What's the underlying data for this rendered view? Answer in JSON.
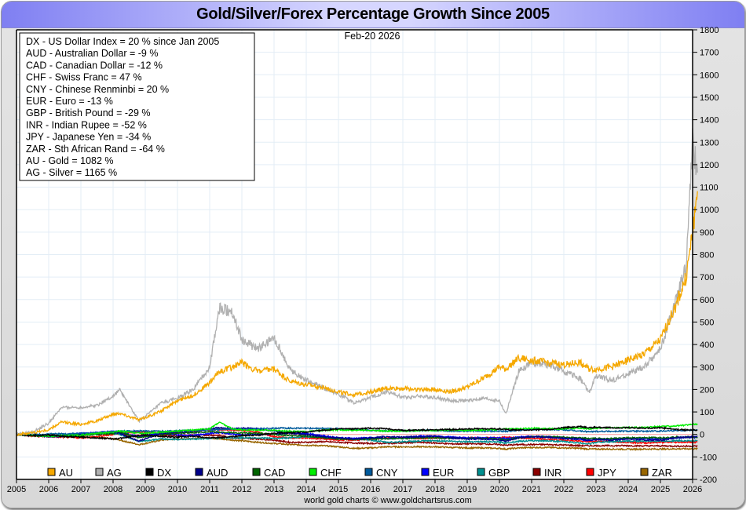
{
  "chart_data": {
    "type": "line",
    "title": "Gold/Silver/Forex Percentage Growth Since 2005",
    "date_label": "Feb-20  2026",
    "footer": "world gold charts © www.goldchartsrus.com",
    "xlabel": "",
    "ylabel": "",
    "xlim": [
      2005,
      2026.15
    ],
    "ylim": [
      -200,
      1800
    ],
    "x_ticks": [
      "2005",
      "2006",
      "2007",
      "2008",
      "2009",
      "2010",
      "2011",
      "2012",
      "2013",
      "2014",
      "2015",
      "2016",
      "2017",
      "2018",
      "2019",
      "2020",
      "2021",
      "2022",
      "2023",
      "2024",
      "2025",
      "2026"
    ],
    "y_ticks": [
      1800,
      1700,
      1600,
      1500,
      1400,
      1300,
      1200,
      1100,
      1000,
      900,
      800,
      700,
      600,
      500,
      400,
      300,
      200,
      100,
      0,
      -100,
      -200
    ],
    "grid": true,
    "legend_position": "bottom",
    "summary_box": [
      "DX - US Dollar Index = 20 % since Jan 2005",
      "AUD - Australian Dollar = -9 %",
      "CAD - Canadian Dollar = -12 %",
      "CHF - Swiss Franc = 47 %",
      "CNY - Chinese Renminbi = 20 %",
      "EUR - Euro = -13 %",
      "GBP - British Pound = -29 %",
      "INR - Indian Rupee = -52 %",
      "JPY - Japanese Yen = -34 %",
      "ZAR - Sth African Rand = -64 %",
      "AU - Gold = 1082 %",
      "AG - Silver = 1165 %"
    ],
    "x": [
      2005,
      2005.5,
      2006,
      2006.4,
      2007,
      2007.5,
      2008,
      2008.2,
      2008.8,
      2009,
      2009.5,
      2010,
      2010.5,
      2011,
      2011.3,
      2011.7,
      2012,
      2012.5,
      2013,
      2013.5,
      2014,
      2014.5,
      2015,
      2015.5,
      2016,
      2016.5,
      2017,
      2017.5,
      2018,
      2018.5,
      2019,
      2019.5,
      2020,
      2020.2,
      2020.6,
      2021,
      2021.5,
      2022,
      2022.5,
      2022.8,
      2023,
      2023.5,
      2024,
      2024.5,
      2025,
      2025.5,
      2025.8,
      2026,
      2026.15
    ],
    "series": [
      {
        "name": "AU",
        "color": "#f5a800",
        "values": [
          0,
          8,
          20,
          55,
          45,
          60,
          90,
          95,
          65,
          75,
          105,
          150,
          175,
          230,
          280,
          300,
          320,
          280,
          290,
          235,
          220,
          210,
          190,
          175,
          190,
          205,
          205,
          200,
          200,
          190,
          210,
          250,
          300,
          290,
          340,
          330,
          320,
          310,
          320,
          290,
          290,
          300,
          330,
          360,
          420,
          580,
          700,
          900,
          1082
        ]
      },
      {
        "name": "AG",
        "color": "#b0b0b0",
        "values": [
          0,
          10,
          50,
          120,
          120,
          130,
          170,
          200,
          60,
          80,
          140,
          160,
          200,
          300,
          560,
          550,
          420,
          380,
          430,
          290,
          240,
          210,
          180,
          140,
          165,
          190,
          165,
          170,
          165,
          150,
          150,
          160,
          150,
          90,
          280,
          320,
          310,
          280,
          250,
          185,
          260,
          240,
          270,
          300,
          380,
          600,
          750,
          1300,
          1165
        ]
      },
      {
        "name": "DX",
        "color": "#000000",
        "values": [
          0,
          -5,
          -2,
          -8,
          -12,
          -15,
          -20,
          -18,
          -5,
          -2,
          -10,
          -12,
          -8,
          -15,
          -14,
          -10,
          -5,
          -3,
          5,
          8,
          10,
          18,
          25,
          25,
          28,
          25,
          18,
          20,
          20,
          22,
          25,
          25,
          25,
          22,
          20,
          20,
          22,
          30,
          35,
          30,
          32,
          30,
          30,
          28,
          30,
          22,
          20,
          20,
          20
        ]
      },
      {
        "name": "AUD",
        "color": "#00008b",
        "values": [
          0,
          -5,
          -10,
          -8,
          0,
          5,
          10,
          5,
          -30,
          -20,
          5,
          10,
          15,
          25,
          30,
          25,
          28,
          25,
          15,
          5,
          0,
          -10,
          -15,
          -20,
          -15,
          -10,
          -12,
          -10,
          -8,
          -15,
          -20,
          -20,
          -25,
          -30,
          -15,
          -10,
          -12,
          -18,
          -20,
          -25,
          -22,
          -25,
          -20,
          -25,
          -25,
          -15,
          -12,
          -10,
          -9
        ]
      },
      {
        "name": "CAD",
        "color": "#006400",
        "values": [
          0,
          -5,
          -8,
          -10,
          -5,
          0,
          5,
          10,
          -15,
          -10,
          0,
          5,
          8,
          12,
          10,
          8,
          6,
          5,
          0,
          -5,
          -8,
          -15,
          -20,
          -22,
          -20,
          -18,
          -18,
          -15,
          -15,
          -18,
          -18,
          -18,
          -20,
          -25,
          -15,
          -10,
          -10,
          -12,
          -15,
          -18,
          -18,
          -18,
          -15,
          -15,
          -15,
          -12,
          -12,
          -12,
          -12
        ]
      },
      {
        "name": "CHF",
        "color": "#00ee00",
        "values": [
          0,
          -5,
          -8,
          -5,
          -3,
          5,
          10,
          15,
          5,
          5,
          10,
          15,
          20,
          25,
          55,
          25,
          20,
          20,
          18,
          15,
          12,
          18,
          20,
          20,
          18,
          15,
          15,
          18,
          18,
          20,
          18,
          20,
          22,
          25,
          25,
          28,
          25,
          25,
          28,
          25,
          28,
          30,
          30,
          32,
          35,
          38,
          42,
          45,
          47
        ]
      },
      {
        "name": "CNY",
        "color": "#005a9c",
        "values": [
          0,
          0,
          2,
          3,
          5,
          8,
          12,
          15,
          15,
          15,
          15,
          16,
          18,
          20,
          22,
          24,
          24,
          25,
          28,
          28,
          27,
          27,
          25,
          22,
          18,
          15,
          16,
          18,
          18,
          15,
          15,
          15,
          15,
          14,
          18,
          22,
          22,
          20,
          15,
          12,
          14,
          14,
          15,
          14,
          15,
          18,
          18,
          20,
          20
        ]
      },
      {
        "name": "EUR",
        "color": "#0000ff",
        "values": [
          0,
          -3,
          -8,
          -5,
          5,
          8,
          15,
          10,
          -10,
          -5,
          5,
          -2,
          -5,
          5,
          8,
          2,
          -2,
          0,
          2,
          5,
          5,
          -5,
          -15,
          -18,
          -15,
          -18,
          -15,
          -8,
          -8,
          -12,
          -15,
          -15,
          -15,
          -18,
          -12,
          -8,
          -10,
          -15,
          -22,
          -28,
          -22,
          -20,
          -18,
          -18,
          -20,
          -15,
          -13,
          -13,
          -13
        ]
      },
      {
        "name": "GBP",
        "color": "#009090",
        "values": [
          0,
          -3,
          -5,
          -2,
          2,
          5,
          5,
          0,
          -30,
          -28,
          -20,
          -22,
          -20,
          -18,
          -15,
          -15,
          -15,
          -15,
          -18,
          -15,
          -10,
          -12,
          -18,
          -20,
          -25,
          -35,
          -32,
          -30,
          -28,
          -30,
          -32,
          -32,
          -34,
          -38,
          -30,
          -28,
          -28,
          -32,
          -38,
          -42,
          -35,
          -32,
          -30,
          -30,
          -30,
          -28,
          -28,
          -29,
          -29
        ]
      },
      {
        "name": "INR",
        "color": "#8b0000",
        "values": [
          0,
          -2,
          -5,
          -3,
          2,
          5,
          8,
          2,
          -10,
          -8,
          -5,
          -5,
          -3,
          -3,
          -5,
          -15,
          -18,
          -20,
          -25,
          -35,
          -35,
          -32,
          -35,
          -38,
          -40,
          -40,
          -38,
          -35,
          -38,
          -42,
          -42,
          -42,
          -45,
          -48,
          -45,
          -45,
          -45,
          -47,
          -50,
          -50,
          -50,
          -50,
          -50,
          -51,
          -51,
          -52,
          -52,
          -52,
          -52
        ]
      },
      {
        "name": "JPY",
        "color": "#ff0000",
        "values": [
          0,
          -8,
          -10,
          -12,
          -15,
          -10,
          0,
          5,
          10,
          10,
          5,
          8,
          15,
          20,
          22,
          20,
          18,
          10,
          -10,
          -15,
          -15,
          -20,
          -25,
          -25,
          -22,
          -15,
          -15,
          -18,
          -15,
          -15,
          -15,
          -15,
          -15,
          -12,
          -15,
          -18,
          -22,
          -25,
          -30,
          -32,
          -30,
          -32,
          -35,
          -38,
          -35,
          -35,
          -34,
          -34,
          -34
        ]
      },
      {
        "name": "ZAR",
        "color": "#996600",
        "values": [
          0,
          -5,
          -5,
          -8,
          -10,
          -12,
          -20,
          -25,
          -45,
          -40,
          -25,
          -20,
          -18,
          -15,
          -20,
          -25,
          -28,
          -35,
          -40,
          -45,
          -48,
          -50,
          -55,
          -62,
          -60,
          -55,
          -55,
          -55,
          -55,
          -58,
          -60,
          -60,
          -62,
          -65,
          -60,
          -58,
          -58,
          -60,
          -62,
          -65,
          -65,
          -65,
          -66,
          -65,
          -65,
          -64,
          -64,
          -64,
          -64
        ]
      }
    ]
  }
}
